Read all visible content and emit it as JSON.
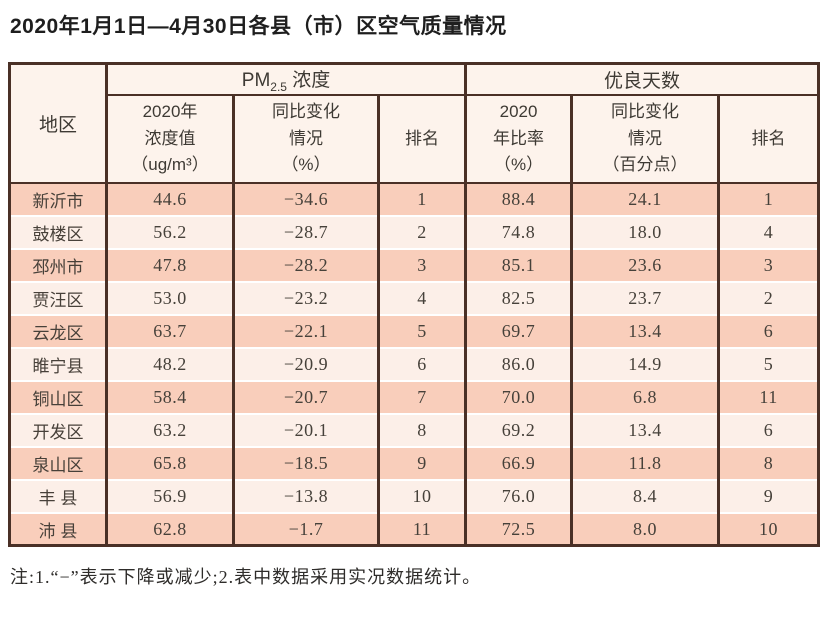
{
  "title": "2020年1月1日—4月30日各县（市）区空气质量情况",
  "note": "注:1.“−”表示下降或减少;2.表中数据采用实况数据统计。",
  "colors": {
    "border": "#4a3026",
    "row_odd": "#f9cebb",
    "row_even": "#fcefe8",
    "header_bg": "#fdf3ec",
    "text": "#46413a"
  },
  "table": {
    "corner_header": "地区",
    "group1": {
      "prefix": "PM",
      "subscript": "2.5",
      "suffix": " 浓度"
    },
    "group2": "优良天数",
    "columns": [
      "2020年\n浓度值\n（ug/m³）",
      "同比变化\n情况\n（%）",
      "排名",
      "2020\n年比率\n（%）",
      "同比变化\n情况\n（百分点）",
      "排名"
    ],
    "rows": [
      {
        "region": "新沂市",
        "pm_value": "44.6",
        "pm_change": "−34.6",
        "pm_rank": "1",
        "good_ratio": "88.4",
        "good_change": "24.1",
        "good_rank": "1"
      },
      {
        "region": "鼓楼区",
        "pm_value": "56.2",
        "pm_change": "−28.7",
        "pm_rank": "2",
        "good_ratio": "74.8",
        "good_change": "18.0",
        "good_rank": "4"
      },
      {
        "region": "邳州市",
        "pm_value": "47.8",
        "pm_change": "−28.2",
        "pm_rank": "3",
        "good_ratio": "85.1",
        "good_change": "23.6",
        "good_rank": "3"
      },
      {
        "region": "贾汪区",
        "pm_value": "53.0",
        "pm_change": "−23.2",
        "pm_rank": "4",
        "good_ratio": "82.5",
        "good_change": "23.7",
        "good_rank": "2"
      },
      {
        "region": "云龙区",
        "pm_value": "63.7",
        "pm_change": "−22.1",
        "pm_rank": "5",
        "good_ratio": "69.7",
        "good_change": "13.4",
        "good_rank": "6"
      },
      {
        "region": "睢宁县",
        "pm_value": "48.2",
        "pm_change": "−20.9",
        "pm_rank": "6",
        "good_ratio": "86.0",
        "good_change": "14.9",
        "good_rank": "5"
      },
      {
        "region": "铜山区",
        "pm_value": "58.4",
        "pm_change": "−20.7",
        "pm_rank": "7",
        "good_ratio": "70.0",
        "good_change": "6.8",
        "good_rank": "11"
      },
      {
        "region": "开发区",
        "pm_value": "63.2",
        "pm_change": "−20.1",
        "pm_rank": "8",
        "good_ratio": "69.2",
        "good_change": "13.4",
        "good_rank": "6"
      },
      {
        "region": "泉山区",
        "pm_value": "65.8",
        "pm_change": "−18.5",
        "pm_rank": "9",
        "good_ratio": "66.9",
        "good_change": "11.8",
        "good_rank": "8"
      },
      {
        "region": "丰 县",
        "pm_value": "56.9",
        "pm_change": "−13.8",
        "pm_rank": "10",
        "good_ratio": "76.0",
        "good_change": "8.4",
        "good_rank": "9"
      },
      {
        "region": "沛 县",
        "pm_value": "62.8",
        "pm_change": "−1.7",
        "pm_rank": "11",
        "good_ratio": "72.5",
        "good_change": "8.0",
        "good_rank": "10"
      }
    ]
  },
  "chart_data": {
    "type": "table",
    "title": "2020年1月1日—4月30日各县（市）区空气质量情况",
    "column_groups": [
      "地区",
      "PM2.5浓度",
      "优良天数"
    ],
    "columns": [
      "地区",
      "PM2.5 2020年浓度值（ug/m³）",
      "PM2.5 同比变化情况（%）",
      "PM2.5 排名",
      "优良天数 2020年比率（%）",
      "优良天数 同比变化情况（百分点）",
      "优良天数 排名"
    ],
    "rows": [
      [
        "新沂市",
        44.6,
        -34.6,
        1,
        88.4,
        24.1,
        1
      ],
      [
        "鼓楼区",
        56.2,
        -28.7,
        2,
        74.8,
        18.0,
        4
      ],
      [
        "邳州市",
        47.8,
        -28.2,
        3,
        85.1,
        23.6,
        3
      ],
      [
        "贾汪区",
        53.0,
        -23.2,
        4,
        82.5,
        23.7,
        2
      ],
      [
        "云龙区",
        63.7,
        -22.1,
        5,
        69.7,
        13.4,
        6
      ],
      [
        "睢宁县",
        48.2,
        -20.9,
        6,
        86.0,
        14.9,
        5
      ],
      [
        "铜山区",
        58.4,
        -20.7,
        7,
        70.0,
        6.8,
        11
      ],
      [
        "开发区",
        63.2,
        -20.1,
        8,
        69.2,
        13.4,
        6
      ],
      [
        "泉山区",
        65.8,
        -18.5,
        9,
        66.9,
        11.8,
        8
      ],
      [
        "丰县",
        56.9,
        -13.8,
        10,
        76.0,
        8.4,
        9
      ],
      [
        "沛县",
        62.8,
        -1.7,
        11,
        72.5,
        8.0,
        10
      ]
    ],
    "note": "注:1.“−”表示下降或减少;2.表中数据采用实况数据统计。"
  }
}
